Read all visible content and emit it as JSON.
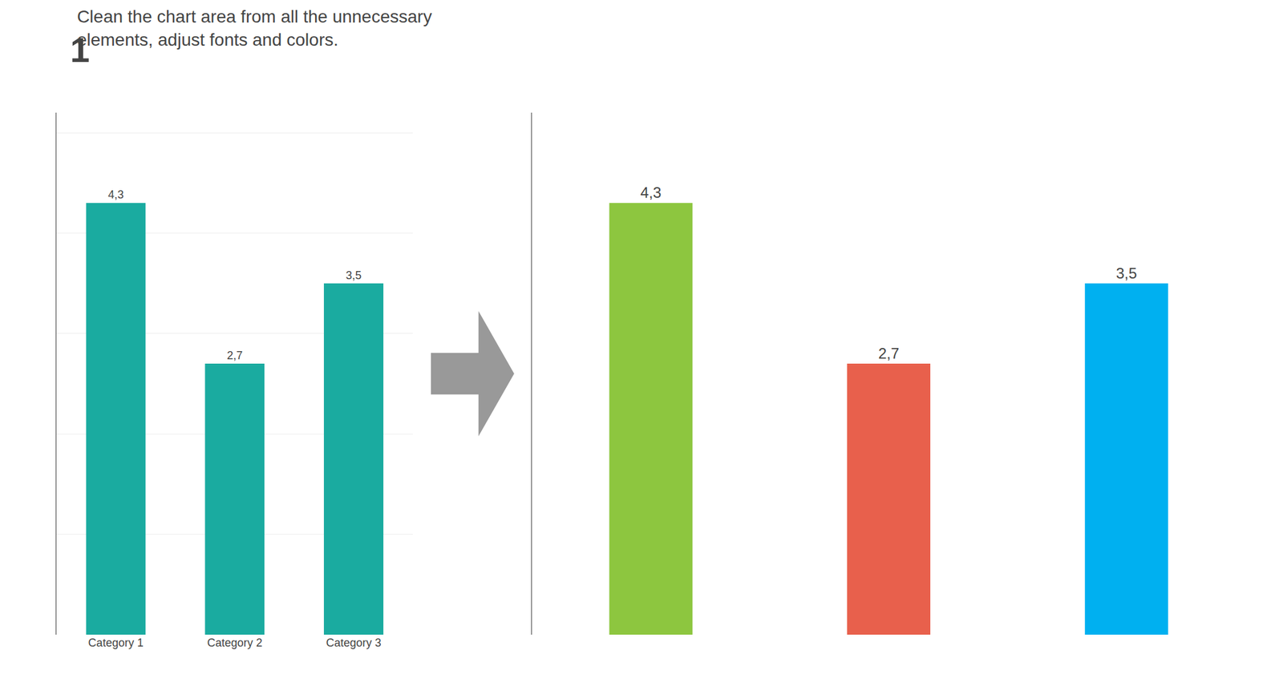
{
  "chart_data": [
    {
      "type": "bar",
      "title": "Clean the chart area from all the unnecessary\nelements, adjust fonts and colors.",
      "annotations": [
        "1"
      ],
      "categories": [
        "Category 1",
        "Category 2",
        "Category 3"
      ],
      "values": [
        4.3,
        2.7,
        3.5
      ],
      "value_labels": [
        "4,3",
        "2,7",
        "3,5"
      ],
      "data_labels": true,
      "color": "#1aaba0",
      "ylim": [
        0,
        5.2
      ],
      "yticks": [
        0,
        1,
        2,
        3,
        4,
        5
      ],
      "grid": true,
      "tick_labels": "x"
    },
    {
      "type": "bar",
      "categories": [
        null,
        null,
        null
      ],
      "values": [
        4.3,
        2.7,
        3.5
      ],
      "value_labels": [
        "4,3",
        "2,7",
        "3,5"
      ],
      "data_labels": true,
      "colors": [
        "#8dc63f",
        "#e8604c",
        "#00b0f0"
      ],
      "ylim": [
        0,
        5.2
      ],
      "grid": false,
      "tick_labels": false
    }
  ]
}
